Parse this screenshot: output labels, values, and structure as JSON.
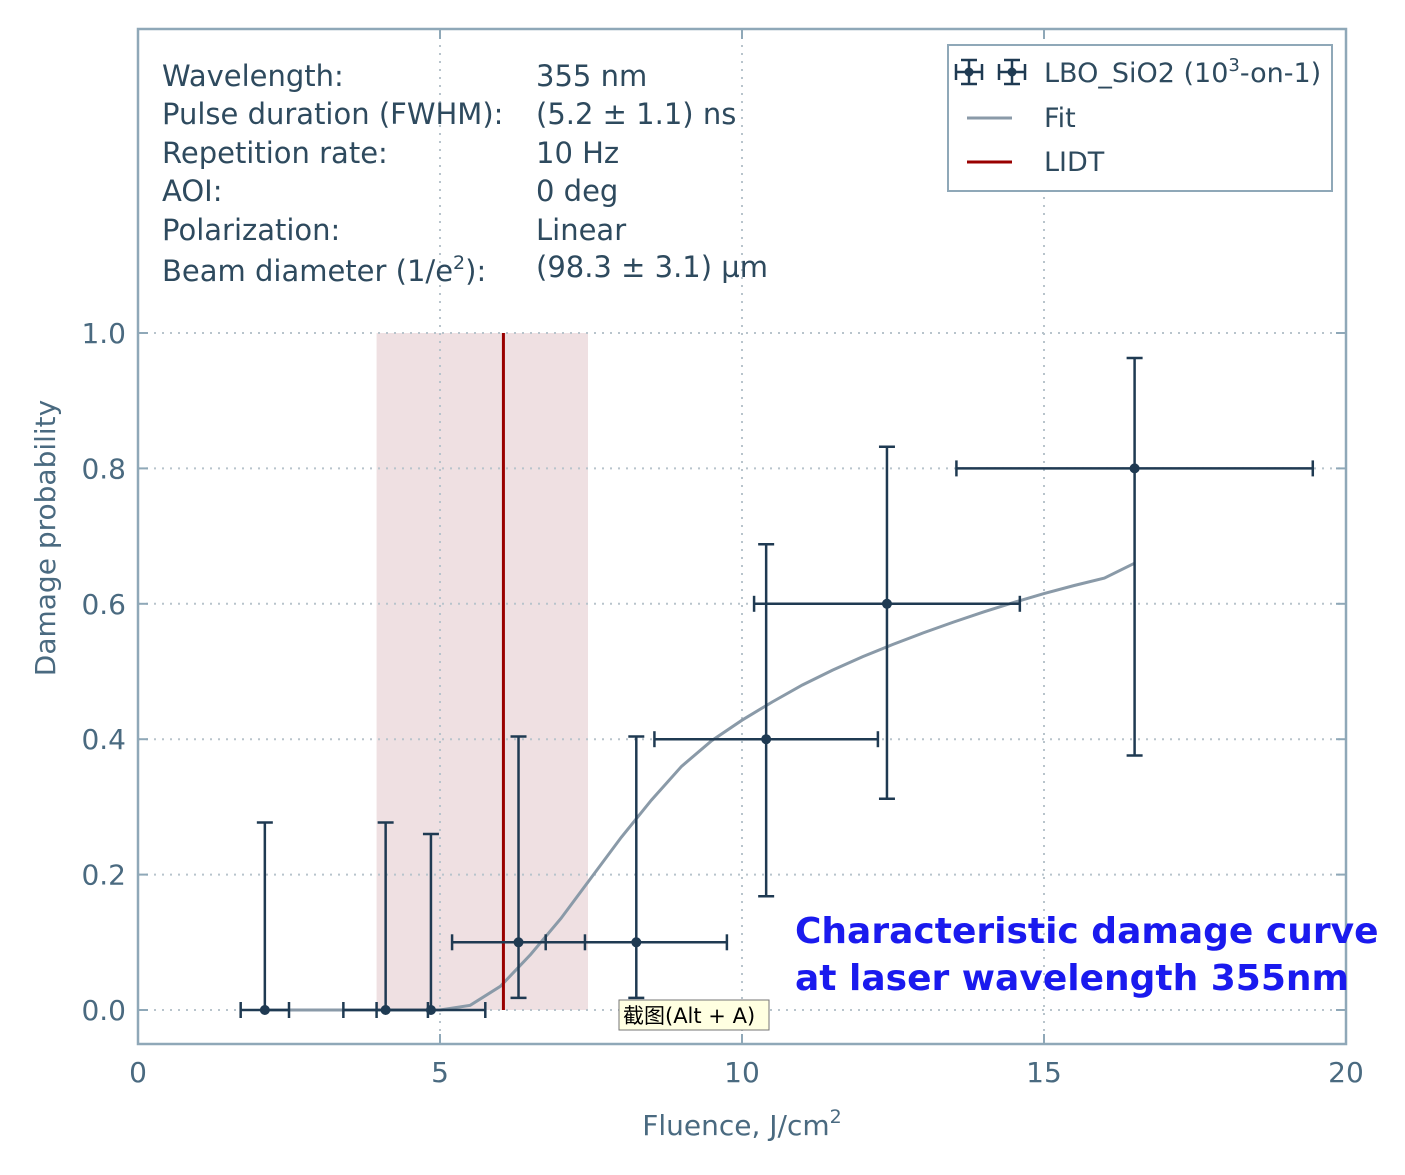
{
  "chart_data": {
    "type": "scatter",
    "xlabel": "Fluence, J/cm",
    "xlabel_sup": "2",
    "ylabel": "Damage probability",
    "xlim": [
      0,
      20
    ],
    "ylim": [
      -0.05,
      1.5
    ],
    "x_ticks": [
      0,
      5,
      10,
      15,
      20
    ],
    "x_tick_labels": [
      "0",
      "5",
      "10",
      "15",
      "20"
    ],
    "y_ticks": [
      0.0,
      0.2,
      0.4,
      0.6,
      0.8,
      1.0
    ],
    "y_tick_labels": [
      "0.0",
      "0.2",
      "0.4",
      "0.6",
      "0.8",
      "1.0"
    ],
    "grid": "dotted",
    "legend_position": "top-right",
    "series": [
      {
        "name": "LBO_SiO2 (10",
        "name_sup": "3",
        "name_suffix": "-on-1)",
        "kind": "errorbar",
        "color": "#1f3a52",
        "points": [
          {
            "x": 2.1,
            "y": 0.0,
            "xerr": 0.4,
            "y_low": 0.0,
            "y_high": 0.277
          },
          {
            "x": 4.1,
            "y": 0.0,
            "xerr": 0.7,
            "y_low": 0.0,
            "y_high": 0.277
          },
          {
            "x": 4.85,
            "y": 0.0,
            "xerr": 0.9,
            "y_low": 0.0,
            "y_high": 0.26
          },
          {
            "x": 6.3,
            "y": 0.1,
            "xerr": 1.1,
            "y_low": 0.018,
            "y_high": 0.404
          },
          {
            "x": 8.25,
            "y": 0.1,
            "xerr": 1.5,
            "y_low": 0.018,
            "y_high": 0.404
          },
          {
            "x": 10.4,
            "y": 0.4,
            "xerr": 1.85,
            "y_low": 0.168,
            "y_high": 0.688
          },
          {
            "x": 12.4,
            "y": 0.6,
            "xerr": 2.2,
            "y_low": 0.312,
            "y_high": 0.832
          },
          {
            "x": 16.5,
            "y": 0.8,
            "xerr": 2.95,
            "y_low": 0.376,
            "y_high": 0.963
          }
        ]
      },
      {
        "name": "Fit",
        "kind": "line",
        "color": "#8a9aa8",
        "points": [
          [
            2.1,
            0.0
          ],
          [
            4.5,
            0.0
          ],
          [
            5.0,
            0.0
          ],
          [
            5.5,
            0.007
          ],
          [
            6.0,
            0.035
          ],
          [
            6.5,
            0.082
          ],
          [
            7.0,
            0.135
          ],
          [
            7.5,
            0.195
          ],
          [
            8.0,
            0.255
          ],
          [
            8.5,
            0.31
          ],
          [
            9.0,
            0.36
          ],
          [
            9.5,
            0.398
          ],
          [
            10.0,
            0.428
          ],
          [
            10.5,
            0.455
          ],
          [
            11.0,
            0.48
          ],
          [
            11.5,
            0.502
          ],
          [
            12.0,
            0.522
          ],
          [
            12.5,
            0.54
          ],
          [
            13.0,
            0.557
          ],
          [
            13.5,
            0.573
          ],
          [
            14.0,
            0.588
          ],
          [
            14.5,
            0.602
          ],
          [
            15.0,
            0.615
          ],
          [
            15.5,
            0.627
          ],
          [
            16.0,
            0.638
          ],
          [
            16.5,
            0.66
          ]
        ]
      },
      {
        "name": "LIDT",
        "kind": "vline",
        "color": "#990000",
        "x": 6.05,
        "band": [
          3.95,
          7.45
        ]
      }
    ],
    "info": [
      {
        "label": "Wavelength:",
        "value": "355 nm"
      },
      {
        "label": "Pulse duration (FWHM):",
        "value": "(5.2 ± 1.1) ns"
      },
      {
        "label": "Repetition rate:",
        "value": "10 Hz"
      },
      {
        "label": "AOI:",
        "value": "0 deg"
      },
      {
        "label": "Polarization:",
        "value": "Linear"
      },
      {
        "label": "Beam diameter (1/e",
        "label_sup": "2",
        "label_suffix": "):",
        "value": "(98.3 ± 3.1) µm"
      }
    ],
    "annotation": [
      "Characteristic damage curve",
      "at laser wavelength 355nm"
    ]
  },
  "tooltip": {
    "text": "截图(Alt + A)"
  },
  "colors": {
    "frame": "#8fa8b8",
    "grid": "#b8c4cc",
    "band": "#efe0e2",
    "tooltip_bg": "#ffffe1"
  }
}
